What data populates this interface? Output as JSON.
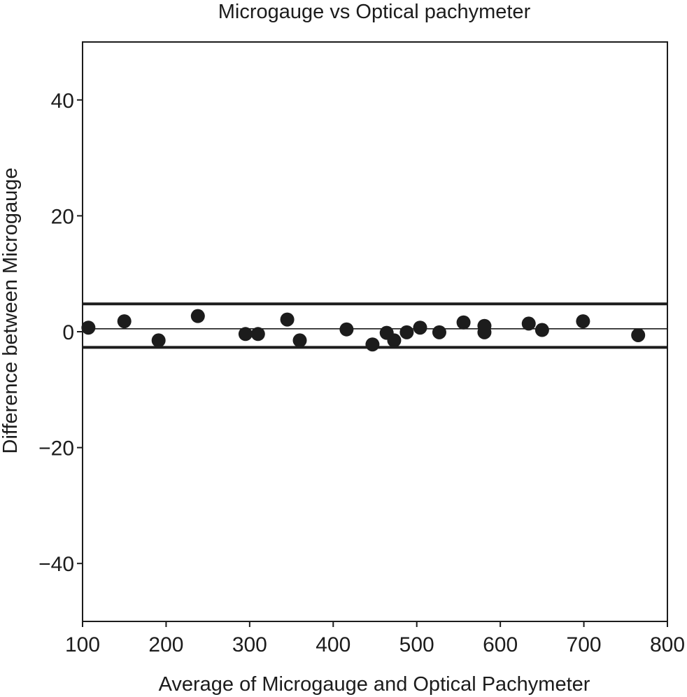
{
  "chart_data": {
    "type": "scatter",
    "title": "Microgauge vs Optical pachymeter",
    "xlabel": "Average of Microgauge and Optical Pachymeter",
    "ylabel": "Difference between Microgauge",
    "xlim": [
      100,
      800
    ],
    "ylim": [
      -50,
      50
    ],
    "xticks": [
      100,
      200,
      300,
      400,
      500,
      600,
      700,
      800
    ],
    "yticks": [
      40,
      20,
      0,
      -20,
      -40
    ],
    "ytick_labels": [
      "40",
      "20",
      "0",
      "−20",
      "−40"
    ],
    "grid": false,
    "legend": "none",
    "mean_line": 0.5,
    "limits_of_agreement": [
      4.8,
      -2.7
    ],
    "points": [
      {
        "x": 107,
        "y": 0.7
      },
      {
        "x": 150,
        "y": 1.8
      },
      {
        "x": 191,
        "y": -1.5
      },
      {
        "x": 238,
        "y": 2.7
      },
      {
        "x": 295,
        "y": -0.4
      },
      {
        "x": 310,
        "y": -0.4
      },
      {
        "x": 345,
        "y": 2.1
      },
      {
        "x": 360,
        "y": -1.5
      },
      {
        "x": 416,
        "y": 0.4
      },
      {
        "x": 447,
        "y": -2.2
      },
      {
        "x": 464,
        "y": -0.2
      },
      {
        "x": 473,
        "y": -1.5
      },
      {
        "x": 488,
        "y": -0.1
      },
      {
        "x": 504,
        "y": 0.7
      },
      {
        "x": 527,
        "y": -0.1
      },
      {
        "x": 556,
        "y": 1.6
      },
      {
        "x": 581,
        "y": 1.0
      },
      {
        "x": 581,
        "y": -0.1
      },
      {
        "x": 634,
        "y": 1.4
      },
      {
        "x": 650,
        "y": 0.3
      },
      {
        "x": 699,
        "y": 1.8
      },
      {
        "x": 765,
        "y": -0.6
      }
    ],
    "colors": {
      "marker": "#1c1c1c",
      "axis": "#1c1c1c",
      "background": "#ffffff"
    }
  }
}
